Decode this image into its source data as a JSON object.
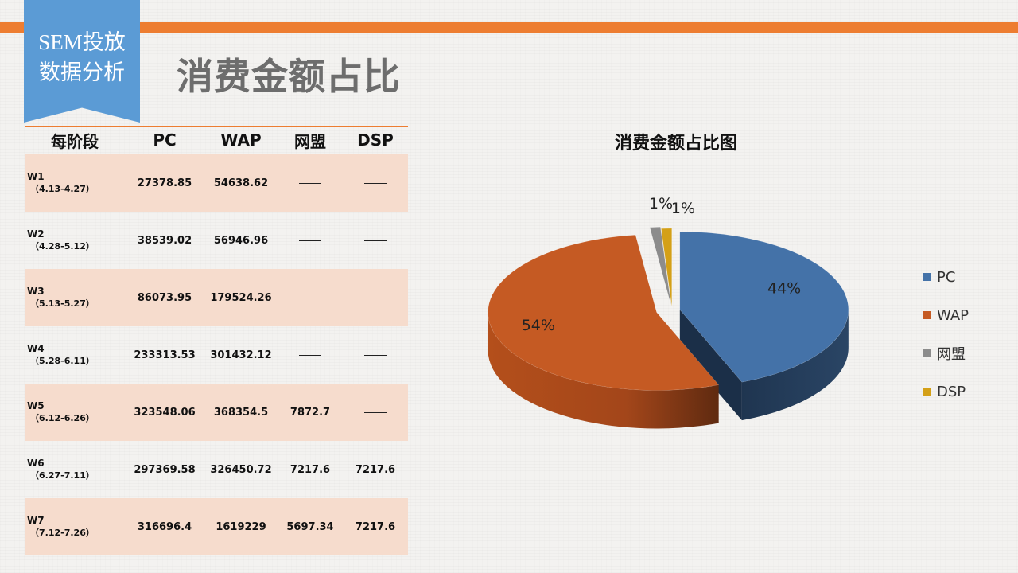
{
  "badge": {
    "line1": "SEM投放",
    "line2": "数据分析"
  },
  "page_title": "消费金额占比",
  "table": {
    "headers": [
      "每阶段",
      "PC",
      "WAP",
      "网盟",
      "DSP"
    ],
    "rows": [
      {
        "week": "W1",
        "range": "（4.13-4.27）",
        "pc": "27378.85",
        "wap": "54638.62",
        "wangmeng": "——",
        "dsp": "——"
      },
      {
        "week": "W2",
        "range": "（4.28-5.12）",
        "pc": "38539.02",
        "wap": "56946.96",
        "wangmeng": "——",
        "dsp": "——"
      },
      {
        "week": "W3",
        "range": "（5.13-5.27）",
        "pc": "86073.95",
        "wap": "179524.26",
        "wangmeng": "——",
        "dsp": "——"
      },
      {
        "week": "W4",
        "range": "（5.28-6.11）",
        "pc": "233313.53",
        "wap": "301432.12",
        "wangmeng": "——",
        "dsp": "——"
      },
      {
        "week": "W5",
        "range": "（6.12-6.26）",
        "pc": "323548.06",
        "wap": "368354.5",
        "wangmeng": "7872.7",
        "dsp": "——"
      },
      {
        "week": "W6",
        "range": "（6.27-7.11）",
        "pc": "297369.58",
        "wap": "326450.72",
        "wangmeng": "7217.6",
        "dsp": "7217.6"
      },
      {
        "week": "W7",
        "range": "（7.12-7.26）",
        "pc": "316696.4",
        "wap": "1619229",
        "wangmeng": "5697.34",
        "dsp": "7217.6"
      }
    ]
  },
  "chart_data": {
    "type": "pie",
    "title": "消费金额占比图",
    "categories": [
      "PC",
      "WAP",
      "网盟",
      "DSP"
    ],
    "values": [
      44,
      54,
      1,
      1
    ],
    "labels": [
      "44%",
      "54%",
      "1%",
      "1%"
    ],
    "colors": [
      "#4472a8",
      "#c55a23",
      "#8c8c8c",
      "#d4a017"
    ],
    "legend_position": "right",
    "style": "3d-exploded"
  }
}
